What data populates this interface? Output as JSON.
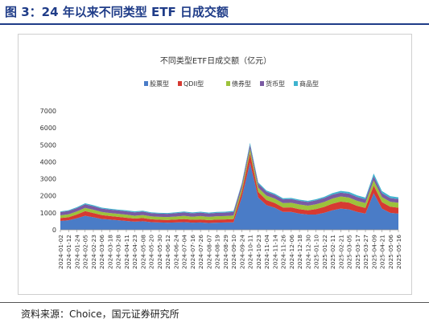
{
  "header": {
    "figure_title": "图 3：24 年以来不同类型 ETF 日成交额"
  },
  "footer": {
    "source": "资料来源：Choice，国元证券研究所"
  },
  "colors": {
    "header": "#1f3c88",
    "stock": "#4a7cc7",
    "qdii": "#d63a32",
    "bond": "#9dc23b",
    "currency": "#7a5aa3",
    "commodity": "#3fb3cf"
  },
  "chart_data": {
    "type": "area",
    "stacked": true,
    "title": "不同类型ETF日成交额（亿元）",
    "xlabel": "",
    "ylabel": "",
    "ylim": [
      0,
      7000
    ],
    "yticks": [
      0,
      1000,
      2000,
      3000,
      4000,
      5000,
      6000,
      7000
    ],
    "legend_position": "top",
    "grid": false,
    "x_tick_labels": [
      "2024-01-02",
      "2024-01-12",
      "2024-01-24",
      "2024-02-05",
      "2024-02-23",
      "2024-03-06",
      "2024-03-18",
      "2024-03-28",
      "2024-04-11",
      "2024-04-23",
      "2024-05-08",
      "2024-05-20",
      "2024-05-30",
      "2024-06-12",
      "2024-06-24",
      "2024-07-04",
      "2024-07-16",
      "2024-07-26",
      "2024-08-07",
      "2024-08-19",
      "2024-08-29",
      "2024-09-10",
      "2024-09-24",
      "2024-10-11",
      "2024-10-23",
      "2024-11-04",
      "2024-11-14",
      "2024-11-26",
      "2024-12-06",
      "2024-12-18",
      "2024-12-30",
      "2025-01-10",
      "2025-01-22",
      "2025-02-11",
      "2025-02-21",
      "2025-03-05",
      "2025-03-17",
      "2025-03-27",
      "2025-04-09",
      "2025-04-21",
      "2025-05-06",
      "2025-05-16"
    ],
    "series": [
      {
        "name": "股票型",
        "values": [
          520,
          560,
          680,
          820,
          740,
          640,
          600,
          560,
          520,
          480,
          500,
          450,
          430,
          420,
          430,
          450,
          420,
          430,
          400,
          420,
          430,
          440,
          1900,
          3950,
          1900,
          1450,
          1300,
          1050,
          1050,
          950,
          900,
          900,
          1000,
          1150,
          1250,
          1200,
          1050,
          950,
          2150,
          1250,
          1000,
          950
        ]
      },
      {
        "name": "QDII型",
        "values": [
          170,
          180,
          220,
          280,
          250,
          230,
          210,
          200,
          190,
          180,
          190,
          170,
          160,
          160,
          170,
          180,
          170,
          180,
          170,
          180,
          180,
          190,
          330,
          560,
          330,
          300,
          280,
          260,
          270,
          260,
          250,
          320,
          350,
          390,
          410,
          400,
          360,
          340,
          460,
          380,
          360,
          350
        ]
      },
      {
        "name": "债券型",
        "values": [
          160,
          170,
          180,
          190,
          190,
          180,
          180,
          180,
          180,
          170,
          180,
          170,
          170,
          170,
          180,
          190,
          180,
          200,
          190,
          200,
          200,
          210,
          220,
          260,
          250,
          260,
          260,
          260,
          270,
          280,
          270,
          280,
          290,
          300,
          300,
          300,
          290,
          280,
          300,
          300,
          290,
          290
        ]
      },
      {
        "name": "货币型",
        "values": [
          190,
          200,
          200,
          210,
          210,
          200,
          200,
          200,
          200,
          200,
          200,
          190,
          190,
          190,
          200,
          200,
          200,
          200,
          200,
          200,
          200,
          210,
          220,
          240,
          230,
          230,
          220,
          220,
          220,
          220,
          220,
          230,
          230,
          230,
          230,
          230,
          230,
          220,
          240,
          230,
          220,
          220
        ]
      },
      {
        "name": "商品型",
        "values": [
          40,
          45,
          50,
          60,
          60,
          55,
          50,
          50,
          55,
          55,
          55,
          50,
          50,
          50,
          50,
          55,
          50,
          55,
          50,
          55,
          55,
          60,
          70,
          110,
          80,
          70,
          70,
          65,
          65,
          65,
          65,
          70,
          70,
          90,
          100,
          100,
          100,
          100,
          160,
          120,
          110,
          100
        ]
      }
    ]
  }
}
